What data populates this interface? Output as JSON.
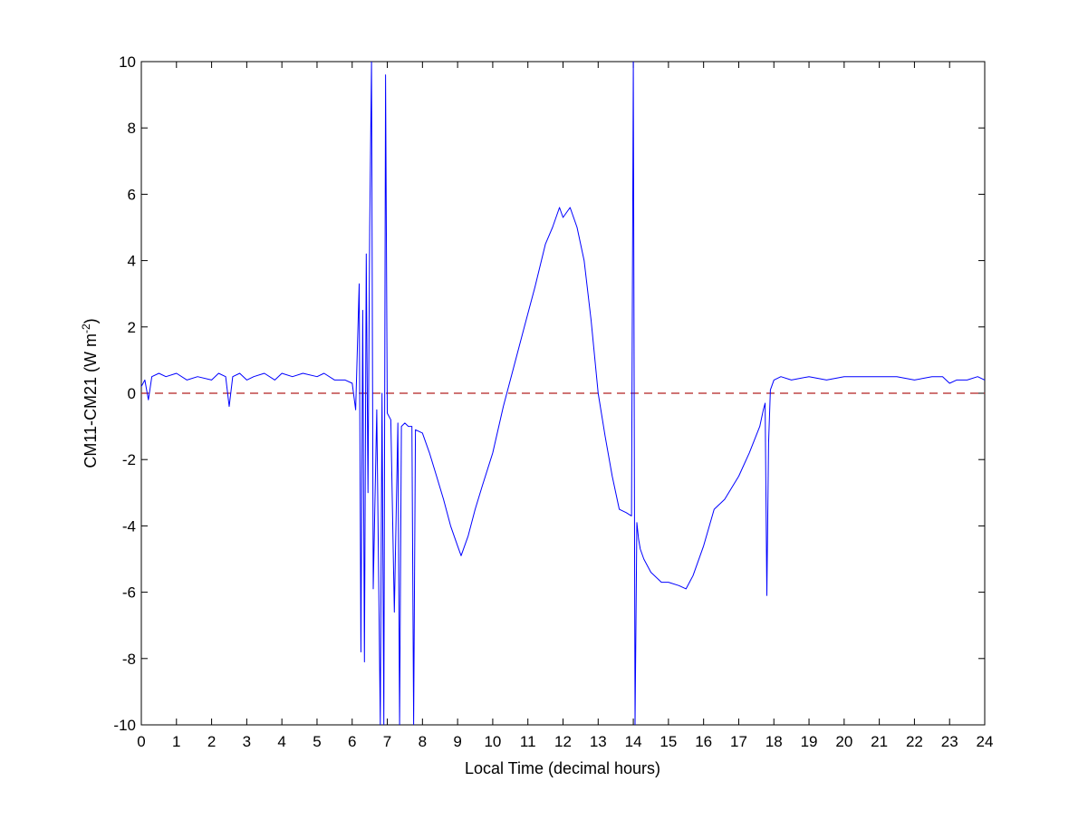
{
  "chart_data": {
    "type": "line",
    "title": "",
    "xlabel": "Local Time (decimal hours)",
    "ylabel": "CM11-CM21 (W m",
    "ylabel_superscript": "-2",
    "ylabel_suffix": ")",
    "xlim": [
      0,
      24
    ],
    "ylim": [
      -10,
      10
    ],
    "xticks": [
      0,
      1,
      2,
      3,
      4,
      5,
      6,
      7,
      8,
      9,
      10,
      11,
      12,
      13,
      14,
      15,
      16,
      17,
      18,
      19,
      20,
      21,
      22,
      23,
      24
    ],
    "yticks": [
      -10,
      -8,
      -6,
      -4,
      -2,
      0,
      2,
      4,
      6,
      8,
      10
    ],
    "grid": false,
    "colors": {
      "series": "#0000ff",
      "zero_line": "#b22222"
    },
    "reference_line": {
      "y": 0,
      "style": "dashed"
    },
    "series": [
      {
        "x": [
          0,
          0.1,
          0.2,
          0.3,
          0.5,
          0.7,
          1.0,
          1.3,
          1.6,
          2.0,
          2.2,
          2.4,
          2.5,
          2.6,
          2.8,
          3.0,
          3.2,
          3.5,
          3.8,
          4.0,
          4.3,
          4.6,
          5.0,
          5.2,
          5.5,
          5.8,
          6.0,
          6.1,
          6.2,
          6.25,
          6.3,
          6.35,
          6.4,
          6.45,
          6.5,
          6.55,
          6.6,
          6.7,
          6.8,
          6.85,
          6.9,
          6.95,
          7.0,
          7.1,
          7.2,
          7.3,
          7.35,
          7.4,
          7.5,
          7.6,
          7.7,
          7.75,
          7.8,
          8.0,
          8.2,
          8.4,
          8.6,
          8.8,
          9.0,
          9.1,
          9.3,
          9.5,
          9.7,
          10.0,
          10.3,
          10.6,
          10.9,
          11.2,
          11.5,
          11.7,
          11.9,
          12.0,
          12.2,
          12.4,
          12.6,
          12.8,
          13.0,
          13.2,
          13.4,
          13.6,
          13.8,
          13.95,
          14.0,
          14.05,
          14.1,
          14.15,
          14.2,
          14.3,
          14.5,
          14.8,
          15.0,
          15.3,
          15.5,
          15.7,
          16.0,
          16.3,
          16.6,
          17.0,
          17.3,
          17.6,
          17.7,
          17.75,
          17.8,
          17.85,
          17.9,
          18.0,
          18.2,
          18.5,
          19.0,
          19.5,
          20.0,
          20.5,
          21.0,
          21.5,
          22.0,
          22.5,
          22.8,
          23.0,
          23.2,
          23.5,
          23.8,
          24.0
        ],
        "y": [
          0.2,
          0.4,
          -0.2,
          0.5,
          0.6,
          0.5,
          0.6,
          0.4,
          0.5,
          0.4,
          0.6,
          0.5,
          -0.4,
          0.5,
          0.6,
          0.4,
          0.5,
          0.6,
          0.4,
          0.6,
          0.5,
          0.6,
          0.5,
          0.6,
          0.4,
          0.4,
          0.3,
          -0.5,
          3.3,
          -7.8,
          2.5,
          -8.1,
          4.2,
          -3.0,
          5.0,
          10.0,
          -5.9,
          -0.5,
          -10.0,
          0.0,
          -10.0,
          9.6,
          -0.6,
          -0.8,
          -6.6,
          -0.9,
          -10.0,
          -1.0,
          -0.9,
          -1.0,
          -1.0,
          -10.0,
          -1.1,
          -1.2,
          -1.8,
          -2.5,
          -3.2,
          -4.0,
          -4.6,
          -4.9,
          -4.3,
          -3.5,
          -2.8,
          -1.8,
          -0.4,
          0.8,
          2.0,
          3.2,
          4.5,
          5.0,
          5.6,
          5.3,
          5.6,
          5.0,
          4.0,
          2.2,
          0.0,
          -1.3,
          -2.5,
          -3.5,
          -3.6,
          -3.7,
          10.0,
          -10.0,
          -3.9,
          -4.4,
          -4.7,
          -5.0,
          -5.4,
          -5.7,
          -5.7,
          -5.8,
          -5.9,
          -5.5,
          -4.6,
          -3.5,
          -3.2,
          -2.5,
          -1.8,
          -1.0,
          -0.5,
          -0.3,
          -6.1,
          -1.5,
          0.1,
          0.4,
          0.5,
          0.4,
          0.5,
          0.4,
          0.5,
          0.5,
          0.5,
          0.5,
          0.4,
          0.5,
          0.5,
          0.3,
          0.4,
          0.4,
          0.5,
          0.4
        ]
      }
    ]
  }
}
